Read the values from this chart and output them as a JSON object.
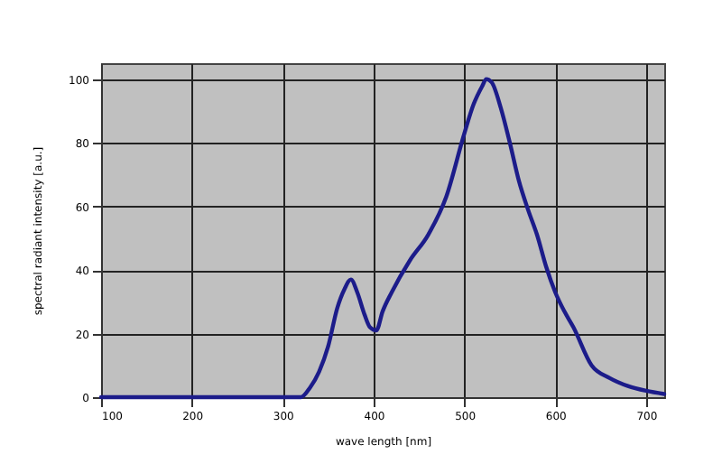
{
  "chart_data": {
    "type": "line",
    "xlabel": "wave length [nm]",
    "ylabel": "spectral radiant intensity [a.u.]",
    "x": [
      100,
      300,
      320,
      330,
      340,
      350,
      360,
      368,
      375,
      382,
      390,
      396,
      403,
      410,
      420,
      440,
      460,
      480,
      500,
      510,
      520,
      524,
      530,
      540,
      550,
      560,
      570,
      580,
      590,
      600,
      610,
      620,
      640,
      660,
      680,
      700,
      720
    ],
    "series": [
      {
        "color": "#1c1c8a",
        "values": [
          0,
          0,
          0,
          3,
          8,
          16,
          28,
          34,
          37,
          33,
          26,
          22,
          21,
          27,
          33,
          43,
          51,
          63,
          83,
          92,
          98,
          100,
          99,
          91,
          80,
          68,
          59,
          51,
          41,
          33,
          27,
          22,
          10,
          6,
          3.5,
          2,
          1
        ]
      }
    ],
    "xlim": [
      100,
      720
    ],
    "xticks": [
      100,
      200,
      300,
      400,
      500,
      600,
      700
    ],
    "ylim": [
      0,
      105
    ],
    "yticks": [
      0,
      20,
      40,
      60,
      80,
      100
    ],
    "grid": true,
    "marker": "none",
    "line_style": "solid"
  }
}
